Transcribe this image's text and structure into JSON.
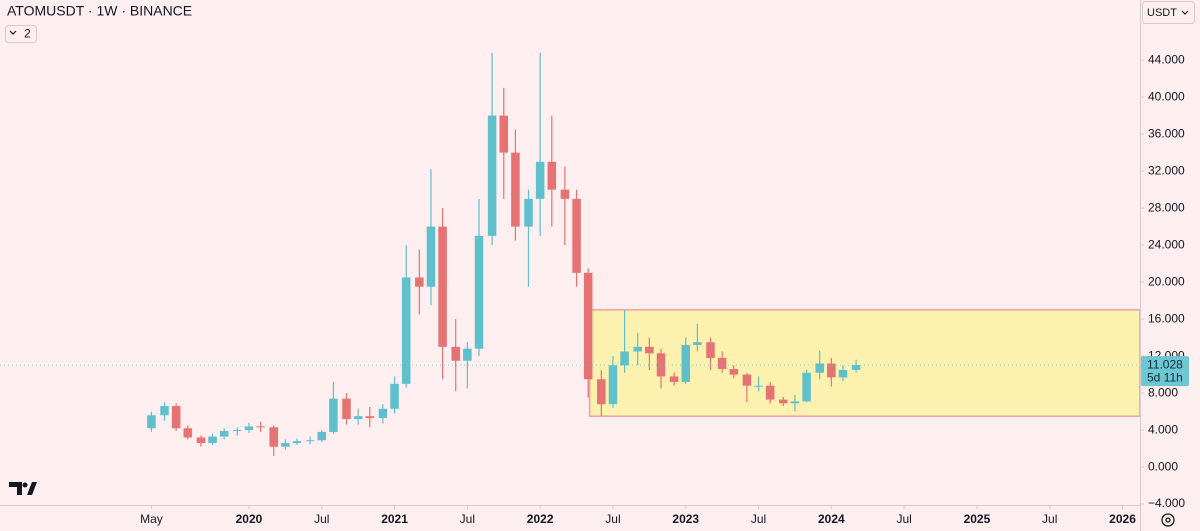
{
  "chart_data": {
    "type": "candlestick",
    "title": "ATOMUSDT · 1W · BINANCE",
    "indicator_count": "2",
    "currency": "USDT",
    "x": [
      2019.33,
      2019.42,
      2019.5,
      2019.58,
      2019.67,
      2019.75,
      2019.83,
      2019.92,
      2020.0,
      2020.08,
      2020.17,
      2020.25,
      2020.33,
      2020.42,
      2020.5,
      2020.58,
      2020.67,
      2020.75,
      2020.83,
      2020.92,
      2021.0,
      2021.08,
      2021.17,
      2021.25,
      2021.33,
      2021.42,
      2021.5,
      2021.58,
      2021.67,
      2021.75,
      2021.83,
      2021.92,
      2022.0,
      2022.08,
      2022.17,
      2022.25,
      2022.33,
      2022.42,
      2022.5,
      2022.58,
      2022.67,
      2022.75,
      2022.83,
      2022.92,
      2023.0,
      2023.08,
      2023.17,
      2023.25,
      2023.33,
      2023.42,
      2023.5,
      2023.58,
      2023.67,
      2023.75,
      2023.83,
      2023.92,
      2024.0,
      2024.08,
      2024.17
    ],
    "open": [
      4.2,
      5.6,
      6.6,
      4.2,
      3.2,
      2.6,
      3.3,
      3.9,
      4.0,
      4.4,
      4.3,
      2.2,
      2.6,
      2.8,
      2.9,
      3.8,
      7.4,
      5.2,
      5.5,
      5.3,
      6.3,
      9.0,
      20.5,
      19.5,
      26.0,
      13.0,
      11.5,
      12.8,
      25.0,
      38.0,
      34.0,
      26.0,
      29.0,
      33.0,
      30.0,
      29.0,
      21.0,
      9.5,
      6.8,
      11.0,
      12.5,
      13.0,
      12.3,
      9.8,
      9.2,
      13.2,
      13.5,
      11.8,
      10.6,
      10.0,
      8.8,
      8.8,
      7.3,
      6.9,
      7.1,
      10.2,
      11.2,
      9.7,
      10.5
    ],
    "high": [
      6.0,
      7.0,
      6.9,
      4.5,
      3.4,
      3.6,
      4.2,
      4.3,
      4.8,
      4.9,
      4.5,
      3.0,
      3.1,
      3.3,
      4.0,
      9.2,
      8.0,
      6.3,
      6.5,
      6.8,
      9.8,
      24.0,
      23.5,
      32.2,
      28.0,
      16.0,
      13.5,
      29.0,
      44.8,
      41.0,
      36.5,
      30.0,
      44.8,
      38.0,
      32.5,
      30.0,
      21.5,
      10.5,
      12.0,
      17.0,
      14.5,
      14.0,
      12.8,
      10.2,
      14.0,
      15.5,
      14.0,
      12.5,
      11.0,
      10.2,
      9.8,
      9.2,
      7.6,
      7.8,
      10.5,
      12.6,
      11.8,
      11.0,
      11.6
    ],
    "low": [
      3.8,
      5.0,
      3.9,
      3.0,
      2.2,
      2.4,
      3.0,
      3.4,
      3.7,
      3.8,
      1.2,
      1.9,
      2.4,
      2.5,
      2.7,
      3.6,
      4.6,
      4.6,
      4.3,
      4.7,
      5.8,
      8.6,
      16.5,
      17.5,
      9.5,
      8.2,
      8.5,
      12.0,
      24.0,
      29.0,
      24.5,
      19.5,
      25.0,
      26.0,
      24.0,
      19.5,
      7.5,
      5.5,
      6.4,
      10.2,
      11.0,
      10.5,
      8.5,
      8.8,
      9.0,
      12.5,
      10.5,
      10.2,
      9.6,
      7.0,
      8.2,
      6.9,
      6.6,
      6.0,
      7.0,
      9.5,
      8.7,
      9.3,
      10.2
    ],
    "close": [
      5.6,
      6.6,
      4.2,
      3.2,
      2.6,
      3.3,
      3.9,
      4.0,
      4.4,
      4.3,
      2.2,
      2.6,
      2.8,
      2.9,
      3.8,
      7.4,
      5.2,
      5.5,
      5.3,
      6.3,
      9.0,
      20.5,
      19.5,
      26.0,
      13.0,
      11.5,
      12.8,
      25.0,
      38.0,
      34.0,
      26.0,
      29.0,
      33.0,
      30.0,
      29.0,
      21.0,
      9.5,
      6.8,
      11.0,
      12.5,
      13.0,
      12.3,
      9.8,
      9.2,
      13.2,
      13.5,
      11.8,
      10.6,
      10.0,
      8.8,
      8.8,
      7.3,
      6.9,
      7.1,
      10.2,
      11.2,
      9.7,
      10.5,
      11.028
    ],
    "up_color": "#5fbfcb",
    "down_color": "#e57373",
    "xlim": [
      2018.29,
      2026.12
    ],
    "ylim": [
      -4.1,
      50.5
    ],
    "xticks": [
      {
        "value": 2019.33,
        "label": "May"
      },
      {
        "value": 2020,
        "label": "2020"
      },
      {
        "value": 2020.5,
        "label": "Jul"
      },
      {
        "value": 2021,
        "label": "2021"
      },
      {
        "value": 2021.5,
        "label": "Jul"
      },
      {
        "value": 2022,
        "label": "2022"
      },
      {
        "value": 2022.5,
        "label": "Jul"
      },
      {
        "value": 2023,
        "label": "2023"
      },
      {
        "value": 2023.5,
        "label": "Jul"
      },
      {
        "value": 2024,
        "label": "2024"
      },
      {
        "value": 2024.5,
        "label": "Jul"
      },
      {
        "value": 2025,
        "label": "2025"
      },
      {
        "value": 2025.5,
        "label": "Jul"
      },
      {
        "value": 2026,
        "label": "2026"
      }
    ],
    "yticks": [
      {
        "value": 44,
        "label": "44.000"
      },
      {
        "value": 40,
        "label": "40.000"
      },
      {
        "value": 36,
        "label": "36.000"
      },
      {
        "value": 32,
        "label": "32.000"
      },
      {
        "value": 28,
        "label": "28.000"
      },
      {
        "value": 24,
        "label": "24.000"
      },
      {
        "value": 20,
        "label": "20.000"
      },
      {
        "value": 16,
        "label": "16.000"
      },
      {
        "value": 12,
        "label": "12.000"
      },
      {
        "value": 8,
        "label": "8.000"
      },
      {
        "value": 4,
        "label": "4.000"
      },
      {
        "value": 0,
        "label": "0.000"
      },
      {
        "value": -4,
        "label": "−4.000"
      }
    ],
    "box": {
      "x0": 2022.34,
      "x1": 2026.12,
      "low": 5.5,
      "high": 17,
      "color": "#fcf1ae",
      "border": "#eba3a3"
    },
    "last_price": 11.028,
    "countdown": "5d 11h"
  }
}
